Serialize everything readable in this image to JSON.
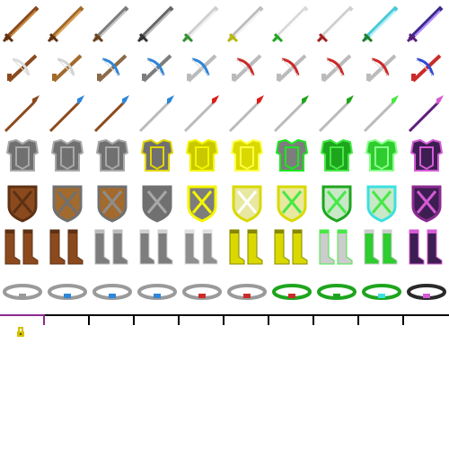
{
  "sheet": {
    "rows": [
      {
        "row": "swords",
        "items": [
          {
            "name": "wooden-sword-icon",
            "blade": "#8b4a1e",
            "edge": "#c58b3e",
            "hilt": "#5d3113"
          },
          {
            "name": "copper-sword-icon",
            "blade": "#a36a2d",
            "edge": "#dfa55a",
            "hilt": "#5d3113"
          },
          {
            "name": "iron-sword-icon",
            "blade": "#7d7d7d",
            "edge": "#c8c8c8",
            "hilt": "#6b3f16"
          },
          {
            "name": "steel-sword-icon",
            "blade": "#666666",
            "edge": "#bdbdbd",
            "hilt": "#333333"
          },
          {
            "name": "silver-sword-icon",
            "blade": "#cfcfcf",
            "edge": "#f2f2f2",
            "hilt": "#2d8f2d"
          },
          {
            "name": "gold-sword-icon",
            "blade": "#bdbdbd",
            "edge": "#f5f5f5",
            "hilt": "#b8b800"
          },
          {
            "name": "emerald-sword-icon",
            "blade": "#d9d9d9",
            "edge": "#ffffff",
            "hilt": "#1ea51e"
          },
          {
            "name": "ruby-sword-icon",
            "blade": "#cfcfcf",
            "edge": "#ffffff",
            "hilt": "#a31e1e"
          },
          {
            "name": "diamond-sword-icon",
            "blade": "#49c8d6",
            "edge": "#b7f1f7",
            "hilt": "#237b22"
          },
          {
            "name": "void-sword-icon",
            "blade": "#3b2c8c",
            "edge": "#b78dff",
            "hilt": "#5d1e7b"
          }
        ]
      },
      {
        "row": "crossbows",
        "items": [
          {
            "name": "wooden-crossbow-icon",
            "body": "#8b4a1e",
            "accent": "#dcdcdc"
          },
          {
            "name": "copper-crossbow-icon",
            "body": "#a36a2d",
            "accent": "#d2d2d2"
          },
          {
            "name": "iron-crossbow-icon",
            "body": "#8b6a4a",
            "accent": "#2f86d8"
          },
          {
            "name": "steel-crossbow-icon",
            "body": "#7d7d7d",
            "accent": "#2f86d8"
          },
          {
            "name": "silver-crossbow-icon",
            "body": "#bbbbbb",
            "accent": "#2f86d8"
          },
          {
            "name": "gold-crossbow-icon",
            "body": "#bbbbbb",
            "accent": "#cc2a2a"
          },
          {
            "name": "emerald-crossbow-icon",
            "body": "#bbbbbb",
            "accent": "#cc2a2a"
          },
          {
            "name": "ruby-crossbow-icon",
            "body": "#bbbbbb",
            "accent": "#cc2a2a"
          },
          {
            "name": "diamond-crossbow-icon",
            "body": "#bbbbbb",
            "accent": "#cc2a2a"
          },
          {
            "name": "void-crossbow-icon",
            "body": "#cc2a2a",
            "accent": "#2f49d8"
          }
        ]
      },
      {
        "row": "spears",
        "items": [
          {
            "name": "wooden-spear-icon",
            "shaft": "#8b4a1e",
            "tip": "#8b4a1e"
          },
          {
            "name": "copper-spear-icon",
            "shaft": "#8b4a1e",
            "tip": "#2f86d8"
          },
          {
            "name": "iron-spear-icon",
            "shaft": "#8b4a1e",
            "tip": "#2f86d8"
          },
          {
            "name": "steel-spear-icon",
            "shaft": "#bbbbbb",
            "tip": "#2f86d8"
          },
          {
            "name": "silver-spear-icon",
            "shaft": "#bbbbbb",
            "tip": "#e11b1b"
          },
          {
            "name": "gold-spear-icon",
            "shaft": "#bbbbbb",
            "tip": "#e11b1b"
          },
          {
            "name": "emerald-spear-icon",
            "shaft": "#bbbbbb",
            "tip": "#1ea51e"
          },
          {
            "name": "ruby-spear-icon",
            "shaft": "#bbbbbb",
            "tip": "#1ea51e"
          },
          {
            "name": "diamond-spear-icon",
            "shaft": "#bbbbbb",
            "tip": "#47e847"
          },
          {
            "name": "void-spear-icon",
            "shaft": "#5d1e7b",
            "tip": "#d55ad5"
          }
        ]
      },
      {
        "row": "chestplates",
        "items": [
          {
            "name": "leather-chestplate-icon",
            "base": "#707070",
            "rim": "#a8a8a8"
          },
          {
            "name": "copper-chestplate-icon",
            "base": "#707070",
            "rim": "#a8a8a8"
          },
          {
            "name": "iron-chestplate-icon",
            "base": "#707070",
            "rim": "#a8a8a8"
          },
          {
            "name": "steel-chestplate-icon",
            "base": "#707070",
            "rim": "#e1d400"
          },
          {
            "name": "silver-chestplate-icon",
            "base": "#c8c800",
            "rim": "#f5f500"
          },
          {
            "name": "gold-chestplate-icon",
            "base": "#d9d900",
            "rim": "#ffff44"
          },
          {
            "name": "emerald-chestplate-icon",
            "base": "#7d7d7d",
            "rim": "#1ee61e"
          },
          {
            "name": "ruby-chestplate-icon",
            "base": "#1ea51e",
            "rim": "#47e847"
          },
          {
            "name": "diamond-chestplate-icon",
            "base": "#2ecc2e",
            "rim": "#8bff8b"
          },
          {
            "name": "void-chestplate-icon",
            "base": "#3d1e52",
            "rim": "#d55ad5"
          }
        ]
      },
      {
        "row": "shields",
        "items": [
          {
            "name": "wooden-shield-icon",
            "base": "#8b4a1e",
            "rim": "#5d3113",
            "cross": "#5d3113"
          },
          {
            "name": "copper-shield-icon",
            "base": "#a36a2d",
            "rim": "#707070",
            "cross": "#707070"
          },
          {
            "name": "iron-shield-icon",
            "base": "#a36a2d",
            "rim": "#707070",
            "cross": "#8d8d8d"
          },
          {
            "name": "steel-shield-icon",
            "base": "#707070",
            "rim": "#707070",
            "cross": "#a8a8a8"
          },
          {
            "name": "silver-shield-icon",
            "base": "#7d7d7d",
            "rim": "#f5f500",
            "cross": "#f5f500"
          },
          {
            "name": "gold-shield-icon",
            "base": "#e8e8a0",
            "rim": "#d9d900",
            "cross": "#ffffff"
          },
          {
            "name": "emerald-shield-icon",
            "base": "#e8e8a0",
            "rim": "#d9d900",
            "cross": "#47e847"
          },
          {
            "name": "ruby-shield-icon",
            "base": "#c8e8c8",
            "rim": "#1ea51e",
            "cross": "#47e847"
          },
          {
            "name": "diamond-shield-icon",
            "base": "#c8e8c8",
            "rim": "#3ce0e0",
            "cross": "#47e847"
          },
          {
            "name": "void-shield-icon",
            "base": "#3d1e52",
            "rim": "#8b2a8f",
            "cross": "#d55ad5"
          }
        ]
      },
      {
        "row": "boots",
        "items": [
          {
            "name": "leather-boots-icon",
            "base": "#8b4a1e",
            "trim": "#5d3113"
          },
          {
            "name": "copper-boots-icon",
            "base": "#8b4a1e",
            "trim": "#5d3113"
          },
          {
            "name": "iron-boots-icon",
            "base": "#7d7d7d",
            "trim": "#bbbbbb"
          },
          {
            "name": "steel-boots-icon",
            "base": "#7d7d7d",
            "trim": "#d0d0d0"
          },
          {
            "name": "silver-boots-icon",
            "base": "#8f8f8f",
            "trim": "#e0e0e0"
          },
          {
            "name": "gold-boots-icon",
            "base": "#d9d900",
            "trim": "#888800"
          },
          {
            "name": "emerald-boots-icon",
            "base": "#d9d900",
            "trim": "#888800"
          },
          {
            "name": "ruby-boots-icon",
            "base": "#cccccc",
            "trim": "#47e847"
          },
          {
            "name": "diamond-boots-icon",
            "base": "#2ecc2e",
            "trim": "#cccccc"
          },
          {
            "name": "void-boots-icon",
            "base": "#3d1e52",
            "trim": "#d55ad5"
          }
        ]
      },
      {
        "row": "rings",
        "items": [
          {
            "name": "plain-ring-icon",
            "band": "#9a9a9a",
            "gem": "#9a9a9a"
          },
          {
            "name": "sapphire-ring-small-icon",
            "band": "#9a9a9a",
            "gem": "#2f86d8"
          },
          {
            "name": "sapphire-ring-icon",
            "band": "#9a9a9a",
            "gem": "#2f86d8"
          },
          {
            "name": "sapphire-ring-large-icon",
            "band": "#9a9a9a",
            "gem": "#2f86d8"
          },
          {
            "name": "ruby-ring-small-icon",
            "band": "#9a9a9a",
            "gem": "#cc2a2a"
          },
          {
            "name": "ruby-ring-icon",
            "band": "#9a9a9a",
            "gem": "#cc2a2a"
          },
          {
            "name": "emerald-ring-ruby-icon",
            "band": "#1ea51e",
            "gem": "#cc2a2a"
          },
          {
            "name": "emerald-ring-icon",
            "band": "#1ea51e",
            "gem": "#1ea51e"
          },
          {
            "name": "emerald-ring-aqua-icon",
            "band": "#1ea51e",
            "gem": "#3ce0e0"
          },
          {
            "name": "void-ring-icon",
            "band": "#2a2a2a",
            "gem": "#d55ad5"
          }
        ]
      }
    ]
  },
  "ruler": {
    "accent": "#8b2a8f",
    "lock_icon": "lock-icon",
    "lock_color": "#d4c000"
  }
}
